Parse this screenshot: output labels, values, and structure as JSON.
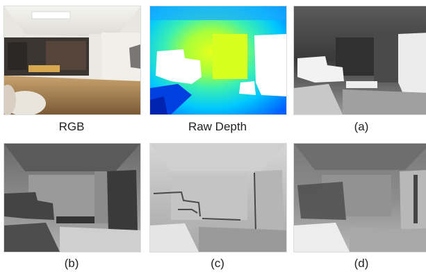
{
  "panels": [
    {
      "id": "rgb",
      "caption": "RGB"
    },
    {
      "id": "raw",
      "caption": "Raw Depth"
    },
    {
      "id": "a",
      "caption": "(a)"
    },
    {
      "id": "b",
      "caption": "(b)"
    },
    {
      "id": "c",
      "caption": "(c)"
    },
    {
      "id": "d",
      "caption": "(d)"
    }
  ],
  "colors": {
    "raw_depth_near": "#0033cc",
    "raw_depth_mid": "#00e0ff",
    "raw_depth_far": "#e6ff1a",
    "missing": "#ffffff"
  }
}
